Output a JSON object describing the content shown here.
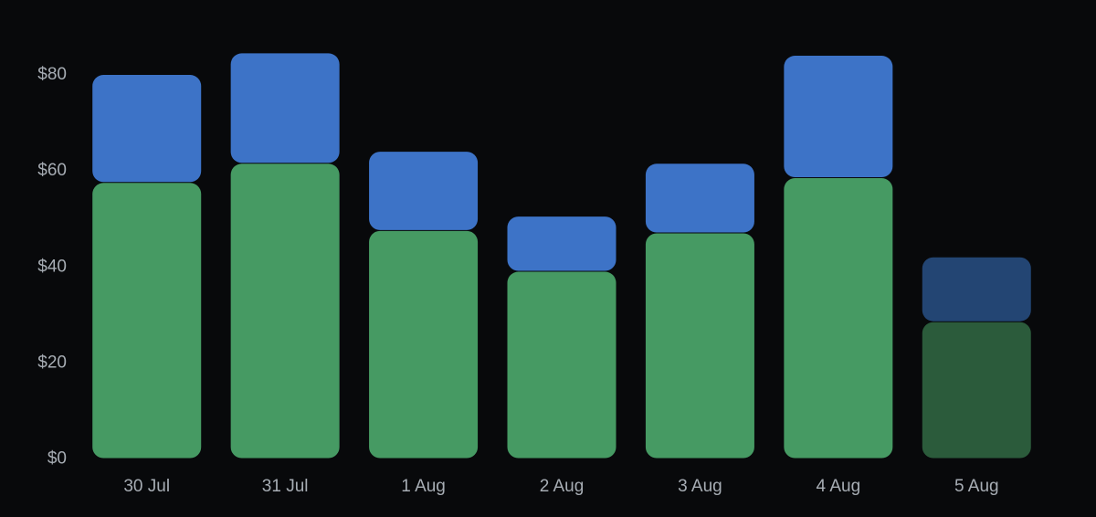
{
  "chart_data": {
    "type": "bar",
    "stacked": true,
    "title": "",
    "xlabel": "",
    "ylabel": "",
    "ylim": [
      0,
      90
    ],
    "y_ticks": [
      "$0",
      "$20",
      "$40",
      "$60",
      "$80"
    ],
    "y_tick_values": [
      0,
      20,
      40,
      60,
      80
    ],
    "categories": [
      "30 Jul",
      "31 Jul",
      "1 Aug",
      "2 Aug",
      "3 Aug",
      "4 Aug",
      "5 Aug"
    ],
    "series": [
      {
        "values": [
          57.5,
          61.5,
          47.5,
          39,
          47,
          58.5,
          28.5
        ],
        "color": "#469a63",
        "muted_color": "#2b5b3b"
      },
      {
        "values": [
          22.5,
          23,
          16.5,
          11.5,
          14.5,
          25.5,
          13.5
        ],
        "color": "#3d73c7",
        "muted_color": "#234573"
      }
    ],
    "muted_categories": [
      "5 Aug"
    ],
    "grid": false,
    "legend": "none",
    "background": "#08090b",
    "tick_label_color": "#a7adb4"
  }
}
